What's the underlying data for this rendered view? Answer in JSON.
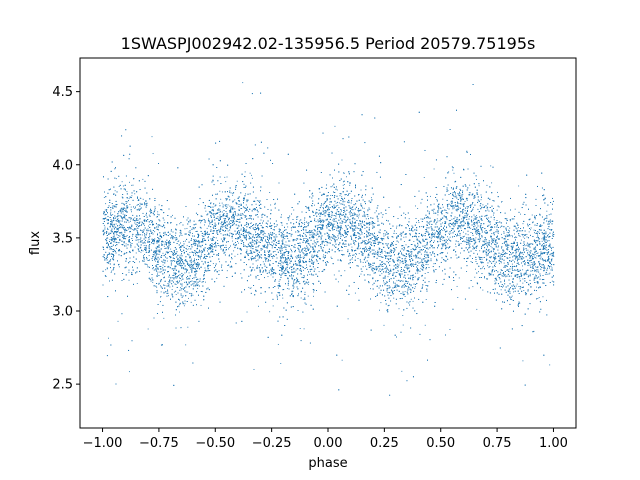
{
  "chart_data": {
    "type": "scatter",
    "title": "1SWASPJ002942.02-135956.5 Period 20579.75195s",
    "xlabel": "phase",
    "ylabel": "flux",
    "xlim": [
      -1.1,
      1.1
    ],
    "ylim": [
      2.2,
      4.73
    ],
    "xticks": [
      -1.0,
      -0.75,
      -0.5,
      -0.25,
      0.0,
      0.25,
      0.5,
      0.75,
      1.0
    ],
    "xtick_labels": [
      "−1.00",
      "−0.75",
      "−0.50",
      "−0.25",
      "0.00",
      "0.25",
      "0.50",
      "0.75",
      "1.00"
    ],
    "yticks": [
      2.5,
      3.0,
      3.5,
      4.0,
      4.5
    ],
    "ytick_labels": [
      "2.5",
      "3.0",
      "3.5",
      "4.0",
      "4.5"
    ],
    "grid": false,
    "point_color": "#1f77b4",
    "phase_range": [
      -1.0,
      1.0
    ],
    "series": [
      {
        "points_description": "phase-folded light curve; double-humped modulation",
        "mean_flux": 3.46,
        "amplitude": 0.14,
        "n_points": 16000,
        "model": [
          {
            "x": -1.0,
            "y": 3.5
          },
          {
            "x": -0.9,
            "y": 3.6
          },
          {
            "x": -0.65,
            "y": 3.33
          },
          {
            "x": -0.42,
            "y": 3.6
          },
          {
            "x": -0.18,
            "y": 3.36
          },
          {
            "x": 0.05,
            "y": 3.6
          },
          {
            "x": 0.32,
            "y": 3.33
          },
          {
            "x": 0.58,
            "y": 3.6
          },
          {
            "x": 0.82,
            "y": 3.36
          },
          {
            "x": 1.0,
            "y": 3.45
          }
        ]
      }
    ]
  }
}
